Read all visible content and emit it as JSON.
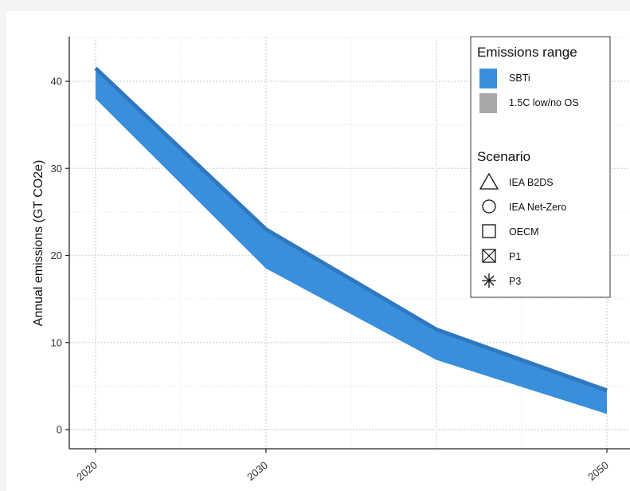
{
  "chart_data": {
    "type": "area",
    "title": "",
    "xlabel": "",
    "ylabel": "Annual emissions (GT CO2e)",
    "x_ticks": [
      "2020",
      "2030",
      "2050"
    ],
    "y_ticks": [
      "0",
      "10",
      "20",
      "30",
      "40"
    ],
    "xlim": [
      2020,
      2050
    ],
    "ylim": [
      -2,
      46
    ],
    "grid": true,
    "legend_placement": "top-right",
    "series": [
      {
        "name": "SBTi",
        "color": "#3a8fdc",
        "edge_color": "#2f78bf",
        "x": [
          2020,
          2030,
          2040,
          2050
        ],
        "upper": [
          41.5,
          23.0,
          11.5,
          4.5
        ],
        "lower": [
          38.0,
          18.5,
          8.0,
          1.8
        ]
      }
    ],
    "legend": {
      "range_title": "Emissions range",
      "range_items": [
        {
          "label": "SBTi",
          "color": "#3a8fdc"
        },
        {
          "label": "1.5C low/no OS",
          "color": "#a8a8a8"
        }
      ],
      "scenario_title": "Scenario",
      "scenario_items": [
        {
          "label": "IEA B2DS",
          "icon": "triangle-icon"
        },
        {
          "label": "IEA Net-Zero",
          "icon": "circle-icon"
        },
        {
          "label": "OECM",
          "icon": "square-icon"
        },
        {
          "label": "P1",
          "icon": "square-cross-icon"
        },
        {
          "label": "P3",
          "icon": "asterisk-icon"
        }
      ]
    }
  }
}
